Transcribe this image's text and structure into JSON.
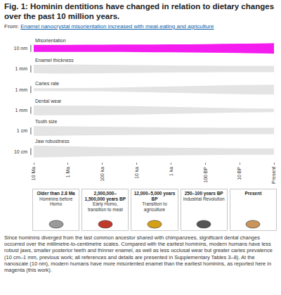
{
  "header": {
    "title": "Fig. 1: Hominin dentitions have changed in relation to dietary changes over the past 10 million years.",
    "from_label": "From:",
    "from_link": "Enamel nanocrystal misorientation increased with meat-eating and agriculture"
  },
  "chart_data": {
    "type": "band",
    "categories": [
      "10 Ma",
      "1 Ma",
      "100 ka",
      "10 ka",
      "1 ka",
      "100 BP",
      "10 BP",
      "Present"
    ],
    "grid": false,
    "series": [
      {
        "name": "Misorientation",
        "color": "#f51cf0",
        "scale": {
          "value": 10,
          "label": "10 nm"
        },
        "values": [
          10,
          10,
          10.3,
          10.7,
          11.3,
          12,
          13.3,
          15
        ]
      },
      {
        "name": "Enamel thickness",
        "color": "#e4e4e4",
        "scale": {
          "value": 1,
          "label": "1 mm"
        },
        "values": [
          1.2,
          1.3,
          1.2,
          1.1,
          1.0,
          0.95,
          0.9,
          0.9
        ]
      },
      {
        "name": "Caries rate",
        "color": "#e4e4e4",
        "scale": {
          "value": 1,
          "label": "1 mm"
        },
        "values": [
          0.4,
          0.45,
          0.5,
          0.7,
          0.9,
          1.1,
          1.3,
          1.4
        ]
      },
      {
        "name": "Dental wear",
        "color": "#e4e4e4",
        "scale": {
          "value": 1,
          "label": "1 mm"
        },
        "values": [
          1.4,
          1.35,
          1.3,
          1.2,
          1.0,
          0.8,
          0.6,
          0.5
        ]
      },
      {
        "name": "Tooth size",
        "color": "#e4e4e4",
        "scale": {
          "value": 1,
          "label": "1 cm"
        },
        "values": [
          1.4,
          1.3,
          1.2,
          1.1,
          1.0,
          0.95,
          0.9,
          0.9
        ]
      },
      {
        "name": "Jaw robustness",
        "color": "#e4e4e4",
        "scale": {
          "value": 10,
          "label": "10 cm"
        },
        "values": [
          17,
          15,
          13,
          12,
          11,
          10,
          9,
          9
        ]
      }
    ]
  },
  "panels": [
    {
      "title": "Older than 2.8 Ma",
      "subtitle": "Hominins before Homo"
    },
    {
      "title": "2,000,000–1,500,000 years BP",
      "subtitle": "Early Homo, transition to meat"
    },
    {
      "title": "12,000–5,000 years BP",
      "subtitle": "Transition to agriculture"
    },
    {
      "title": "250–100 years BP",
      "subtitle": "Industrial Revolution"
    },
    {
      "title": "Present",
      "subtitle": null
    }
  ],
  "caption": "Since hominins diverged from the last common ancestor shared with chimpanzees, significant dental changes occurred over the millimetre-to-centimetre scales. Compared with the earliest hominins, modern humans have less robust jaws, smaller posterior teeth and thinner enamel, as well as less occlusal wear but greater caries prevalence (10 cm–1 mm, previous work; all references and details are presented in Supplementary Tables 3–8). At the nanoscale (10 nm), modern humans have more misoriented enamel than the earliest hominins, as reported here in magenta (this work)."
}
